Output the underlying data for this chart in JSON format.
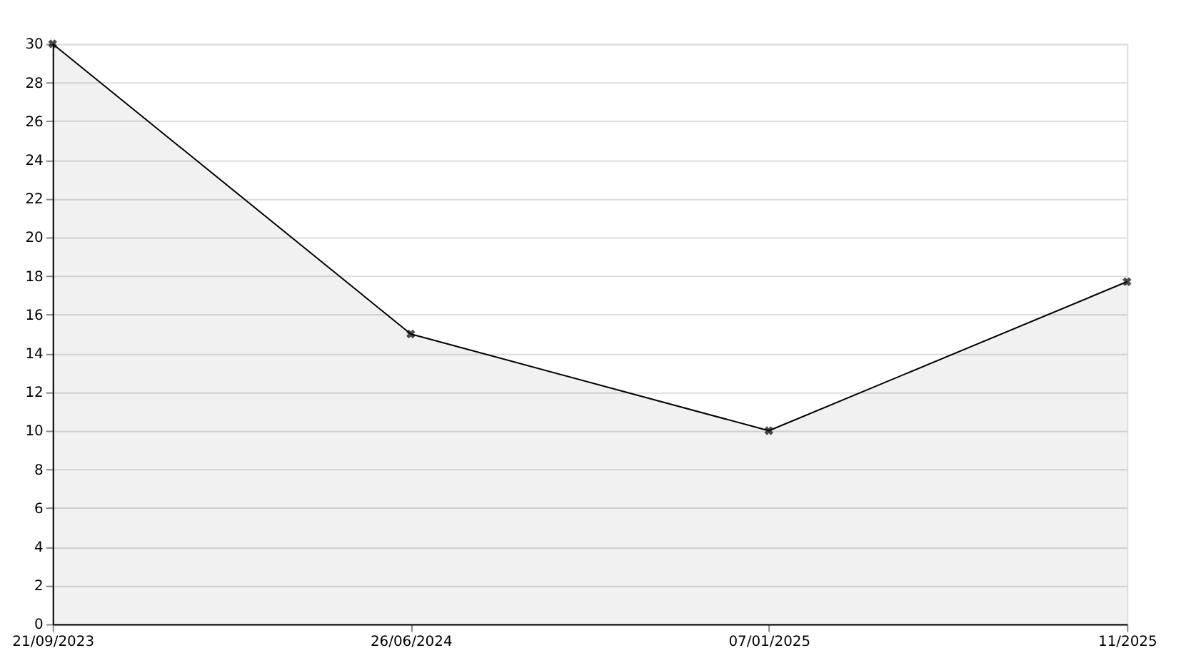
{
  "chart_data": {
    "type": "area",
    "categories": [
      "21/09/2023",
      "26/06/2024",
      "07/01/2025",
      "11/2025"
    ],
    "series": [
      {
        "color": "#000000",
        "values": [
          30,
          15,
          10,
          17.7
        ]
      }
    ],
    "ylim": [
      0,
      30
    ],
    "yticks": [
      0,
      2,
      4,
      6,
      8,
      10,
      12,
      14,
      16,
      18,
      20,
      22,
      24,
      26,
      28,
      30
    ],
    "grid": "y",
    "marker": "cross",
    "line_style": "solid"
  }
}
